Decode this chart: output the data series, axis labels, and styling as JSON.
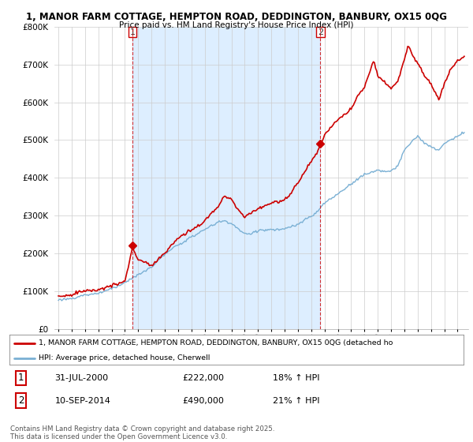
{
  "title_line1": "1, MANOR FARM COTTAGE, HEMPTON ROAD, DEDDINGTON, BANBURY, OX15 0QG",
  "title_line2": "Price paid vs. HM Land Registry's House Price Index (HPI)",
  "sale1_date": "31-JUL-2000",
  "sale1_price": 222000,
  "sale1_hpi": "18% ↑ HPI",
  "sale2_date": "10-SEP-2014",
  "sale2_price": 490000,
  "sale2_hpi": "21% ↑ HPI",
  "legend_line1": "1, MANOR FARM COTTAGE, HEMPTON ROAD, DEDDINGTON, BANBURY, OX15 0QG (detached ho",
  "legend_line2": "HPI: Average price, detached house, Cherwell",
  "footer": "Contains HM Land Registry data © Crown copyright and database right 2025.\nThis data is licensed under the Open Government Licence v3.0.",
  "price_color": "#cc0000",
  "hpi_color": "#7ab0d4",
  "shade_color": "#ddeeff",
  "background_color": "#ffffff",
  "grid_color": "#cccccc",
  "ylim_max": 800000,
  "sale1_x": 2000.58,
  "sale2_x": 2014.69,
  "xmin": 1995.0,
  "xmax": 2025.5
}
